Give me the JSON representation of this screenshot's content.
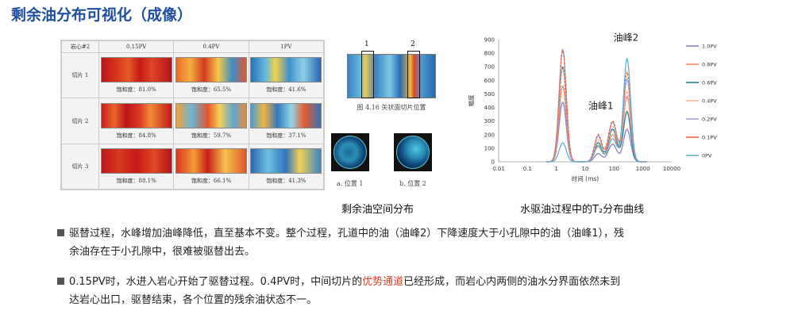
{
  "title": "剩余油分布可视化（成像）",
  "table": {
    "corner": "岩心#2",
    "cols": [
      "0.15PV",
      "0.4PV",
      "1PV"
    ],
    "rows": [
      {
        "label": "切片 1",
        "sat": [
          "饱和度：81.0%",
          "饱和度：65.5%",
          "饱和度：41.6%"
        ]
      },
      {
        "label": "切片 2",
        "sat": [
          "饱和度：84.8%",
          "饱和度：59.7%",
          "饱和度：37.1%"
        ]
      },
      {
        "label": "切片 3",
        "sat": [
          "饱和度：88.1%",
          "饱和度：66.1%",
          "饱和度：41.3%"
        ]
      }
    ]
  },
  "middle": {
    "marker1": "1",
    "marker2": "2",
    "fig_caption": "图 4.16  矢状面切片位置",
    "pos1": "a.  位置 1",
    "pos2": "b.  位置 2",
    "caption": "剩余油空间分布"
  },
  "chart_caption": "水驱油过程中的T₂分布曲线",
  "chart_data": {
    "type": "line",
    "title": "",
    "xlabel": "时间 (ms)",
    "ylabel": "幅度",
    "xscale": "log",
    "xlim": [
      0.01,
      10000
    ],
    "ylim": [
      0,
      900
    ],
    "xticks": [
      "0.01",
      "0.1",
      "1",
      "10",
      "100",
      "1000",
      "10000"
    ],
    "yticks": [
      "0",
      "100",
      "200",
      "300",
      "400",
      "500",
      "600",
      "700",
      "800",
      "900"
    ],
    "annotations": [
      {
        "text": "油峰1",
        "x": 40,
        "y": 390
      },
      {
        "text": "油峰2",
        "x": 300,
        "y": 890
      }
    ],
    "legend_position": "right",
    "series": [
      {
        "name": "1.0PV",
        "color": "#8f7fc4",
        "p1": 440,
        "p2": 130,
        "p2b": 60,
        "p2c": 240
      },
      {
        "name": "0.8PV",
        "color": "#f08a68",
        "p1": 560,
        "p2": 200,
        "p2b": 110,
        "p2c": 480
      },
      {
        "name": "0.6PV",
        "color": "#2f7f8a",
        "p1": 700,
        "p2": 240,
        "p2b": 140,
        "p2c": 370
      },
      {
        "name": "0.4PV",
        "color": "#f6b69a",
        "p1": 690,
        "p2": 260,
        "p2b": 160,
        "p2c": 520
      },
      {
        "name": "0.2PV",
        "color": "#a99ee0",
        "p1": 830,
        "p2": 290,
        "p2b": 190,
        "p2c": 610
      },
      {
        "name": "0.1PV",
        "color": "#e8673a",
        "p1": 820,
        "p2": 300,
        "p2b": 200,
        "p2c": 660
      },
      {
        "name": "0PV",
        "color": "#5fb3d0",
        "p1": 140,
        "p2": 170,
        "p2b": 120,
        "p2c": 760
      }
    ]
  },
  "bullets": [
    {
      "line1": "驱替过程，水峰增加油峰降低，直至基本不变。整个过程，孔道中的油（油峰2）下降速度大于小孔隙中的油（油峰1），残",
      "line2": "余油存在于小孔隙中，很难被驱替出去。"
    },
    {
      "line1a": "0.15PV时，水进入岩心开始了驱替过程。0.4PV时，中间切片的",
      "highlight": "优势通道",
      "line1b": "已经形成，而岩心内两侧的油水分界面依然未到",
      "line2": "达岩心出口，驱替结束，各个位置的残余油状态不一。"
    }
  ]
}
